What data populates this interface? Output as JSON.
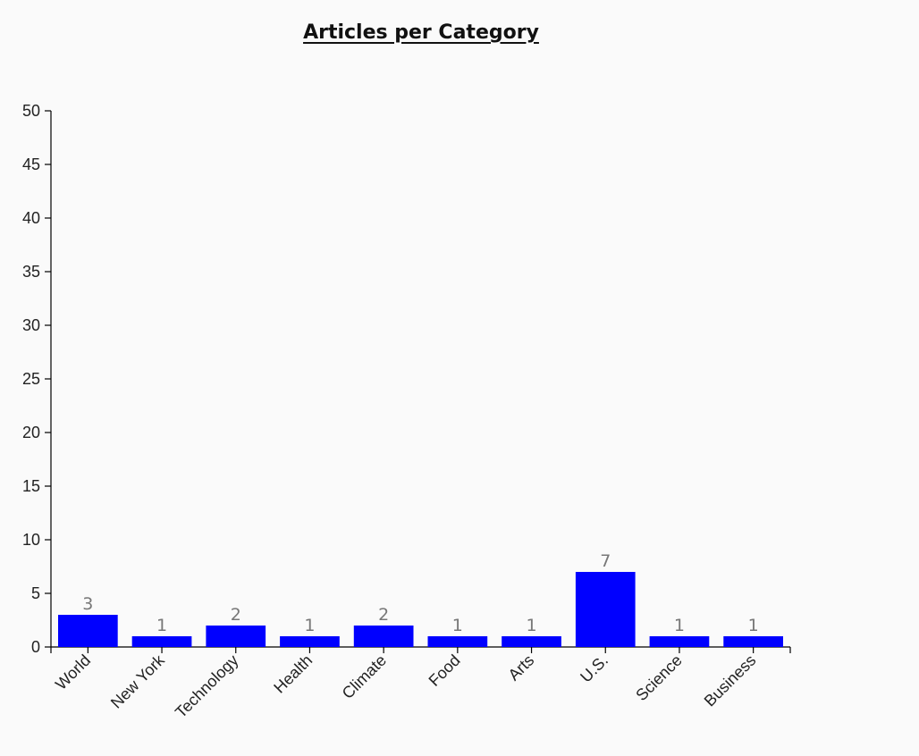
{
  "chart_data": {
    "type": "bar",
    "title": "Articles per Category",
    "xlabel": "",
    "ylabel": "",
    "categories": [
      "World",
      "New York",
      "Technology",
      "Health",
      "Climate",
      "Food",
      "Arts",
      "U.S.",
      "Science",
      "Business"
    ],
    "values": [
      3,
      1,
      2,
      1,
      2,
      1,
      1,
      7,
      1,
      1
    ],
    "ylim": [
      0,
      50
    ],
    "yticks": [
      0,
      5,
      10,
      15,
      20,
      25,
      30,
      35,
      40,
      45,
      50
    ],
    "grid": false,
    "bar_color": "#0000ff",
    "data_label_color": "#777777"
  }
}
